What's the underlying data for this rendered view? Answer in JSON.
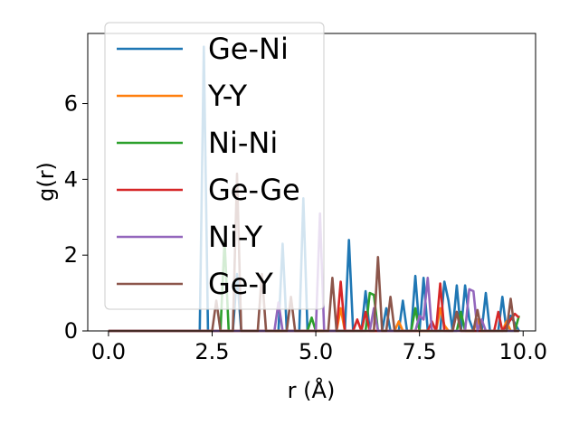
{
  "chart_data": {
    "type": "line",
    "title": "",
    "xlabel": "r (Å)",
    "ylabel": "g(r)",
    "xlim": [
      -0.5,
      10.3
    ],
    "ylim": [
      0,
      7.85
    ],
    "xticks": [
      0.0,
      2.5,
      5.0,
      7.5,
      10.0
    ],
    "xtick_labels": [
      "0.0",
      "2.5",
      "5.0",
      "7.5",
      "10.0"
    ],
    "yticks": [
      0,
      2,
      4,
      6
    ],
    "ytick_labels": [
      "0",
      "2",
      "4",
      "6"
    ],
    "grid": false,
    "legend_position": "upper-left",
    "series": [
      {
        "name": "Ge-Ni",
        "color": "#1f77b4",
        "points": [
          [
            0.0,
            0
          ],
          [
            2.2,
            0
          ],
          [
            2.3,
            7.5
          ],
          [
            2.4,
            0
          ],
          [
            3.0,
            0
          ],
          [
            3.1,
            1.5
          ],
          [
            3.2,
            0
          ],
          [
            4.1,
            0
          ],
          [
            4.2,
            2.3
          ],
          [
            4.3,
            0
          ],
          [
            4.6,
            0
          ],
          [
            4.7,
            3.5
          ],
          [
            4.8,
            0
          ],
          [
            5.7,
            0
          ],
          [
            5.8,
            2.4
          ],
          [
            5.9,
            0
          ],
          [
            6.1,
            0
          ],
          [
            6.2,
            1.05
          ],
          [
            6.3,
            0
          ],
          [
            6.6,
            0
          ],
          [
            6.7,
            0.6
          ],
          [
            6.8,
            0
          ],
          [
            7.0,
            0
          ],
          [
            7.1,
            0.8
          ],
          [
            7.2,
            0
          ],
          [
            7.3,
            0
          ],
          [
            7.4,
            1.45
          ],
          [
            7.5,
            0
          ],
          [
            7.6,
            1.4
          ],
          [
            7.7,
            0
          ],
          [
            8.0,
            0
          ],
          [
            8.1,
            1.3
          ],
          [
            8.2,
            0.8
          ],
          [
            8.3,
            0
          ],
          [
            8.4,
            1.2
          ],
          [
            8.5,
            0
          ],
          [
            8.6,
            1.2
          ],
          [
            8.7,
            0.3
          ],
          [
            8.8,
            0
          ],
          [
            9.0,
            0
          ],
          [
            9.1,
            1.0
          ],
          [
            9.2,
            0
          ],
          [
            9.4,
            0
          ],
          [
            9.5,
            0.9
          ],
          [
            9.6,
            0
          ],
          [
            9.7,
            0.4
          ],
          [
            9.8,
            0.2
          ],
          [
            9.9,
            0
          ]
        ]
      },
      {
        "name": "Y-Y",
        "color": "#ff7f0e",
        "points": [
          [
            0.0,
            0
          ],
          [
            5.5,
            0
          ],
          [
            5.6,
            0.6
          ],
          [
            5.7,
            0
          ],
          [
            6.9,
            0
          ],
          [
            7.0,
            0.25
          ],
          [
            7.1,
            0
          ],
          [
            7.9,
            0
          ],
          [
            8.0,
            0.6
          ],
          [
            8.1,
            0.15
          ],
          [
            8.2,
            0
          ],
          [
            8.8,
            0
          ],
          [
            8.9,
            0.3
          ],
          [
            9.0,
            0
          ],
          [
            9.5,
            0
          ],
          [
            9.6,
            0.25
          ],
          [
            9.7,
            0
          ],
          [
            9.9,
            0
          ]
        ]
      },
      {
        "name": "Ni-Ni",
        "color": "#2ca02c",
        "points": [
          [
            0.0,
            0
          ],
          [
            2.7,
            0
          ],
          [
            2.8,
            2.4
          ],
          [
            2.9,
            0
          ],
          [
            4.8,
            0
          ],
          [
            4.9,
            0.35
          ],
          [
            5.0,
            0
          ],
          [
            6.2,
            0
          ],
          [
            6.3,
            1.0
          ],
          [
            6.4,
            0.95
          ],
          [
            6.5,
            0
          ],
          [
            7.3,
            0
          ],
          [
            7.4,
            0.6
          ],
          [
            7.5,
            0
          ],
          [
            8.4,
            0
          ],
          [
            8.5,
            0.5
          ],
          [
            8.6,
            0
          ],
          [
            9.8,
            0
          ],
          [
            9.9,
            0.4
          ]
        ]
      },
      {
        "name": "Ge-Ge",
        "color": "#d62728",
        "points": [
          [
            0.0,
            0
          ],
          [
            5.5,
            0
          ],
          [
            5.6,
            1.3
          ],
          [
            5.7,
            0
          ],
          [
            5.9,
            0
          ],
          [
            6.0,
            0.3
          ],
          [
            6.1,
            0
          ],
          [
            6.1,
            0
          ],
          [
            6.2,
            0.5
          ],
          [
            6.3,
            0
          ],
          [
            7.7,
            0
          ],
          [
            7.8,
            0.25
          ],
          [
            7.9,
            0
          ],
          [
            8.0,
            1.25
          ],
          [
            8.1,
            0
          ],
          [
            8.3,
            0
          ],
          [
            8.4,
            0.5
          ],
          [
            8.5,
            0
          ],
          [
            9.3,
            0
          ],
          [
            9.4,
            0.5
          ],
          [
            9.5,
            0
          ],
          [
            9.8,
            0.45
          ],
          [
            9.9,
            0.35
          ]
        ]
      },
      {
        "name": "Ni-Y",
        "color": "#9467bd",
        "points": [
          [
            0.0,
            0
          ],
          [
            4.0,
            0
          ],
          [
            4.1,
            0.75
          ],
          [
            4.2,
            0
          ],
          [
            5.0,
            0
          ],
          [
            5.1,
            3.1
          ],
          [
            5.2,
            0
          ],
          [
            6.3,
            0
          ],
          [
            6.4,
            0.6
          ],
          [
            6.5,
            0
          ],
          [
            7.4,
            0
          ],
          [
            7.5,
            0.4
          ],
          [
            7.6,
            0.3
          ],
          [
            7.7,
            1.4
          ],
          [
            7.8,
            0
          ],
          [
            8.6,
            0
          ],
          [
            8.7,
            1.1
          ],
          [
            8.8,
            1.05
          ],
          [
            8.9,
            0
          ],
          [
            9.0,
            0.3
          ],
          [
            9.1,
            0
          ],
          [
            9.9,
            0
          ]
        ]
      },
      {
        "name": "Ge-Y",
        "color": "#8c564b",
        "points": [
          [
            0.0,
            0
          ],
          [
            2.5,
            0
          ],
          [
            2.6,
            0.8
          ],
          [
            2.7,
            0
          ],
          [
            3.0,
            0
          ],
          [
            3.1,
            4.15
          ],
          [
            3.2,
            0
          ],
          [
            3.6,
            0
          ],
          [
            3.7,
            1.5
          ],
          [
            3.8,
            0
          ],
          [
            4.3,
            0
          ],
          [
            4.4,
            0.9
          ],
          [
            4.5,
            0
          ],
          [
            5.3,
            0
          ],
          [
            5.4,
            1.4
          ],
          [
            5.5,
            0
          ],
          [
            6.4,
            0
          ],
          [
            6.5,
            1.95
          ],
          [
            6.6,
            0
          ],
          [
            6.7,
            0
          ],
          [
            6.8,
            0.9
          ],
          [
            6.9,
            0
          ],
          [
            8.3,
            0
          ],
          [
            8.4,
            0.5
          ],
          [
            8.5,
            0
          ],
          [
            8.8,
            0
          ],
          [
            8.9,
            0.55
          ],
          [
            9.0,
            0
          ],
          [
            9.6,
            0
          ],
          [
            9.7,
            0.85
          ],
          [
            9.8,
            0
          ],
          [
            9.9,
            0
          ]
        ]
      }
    ]
  }
}
